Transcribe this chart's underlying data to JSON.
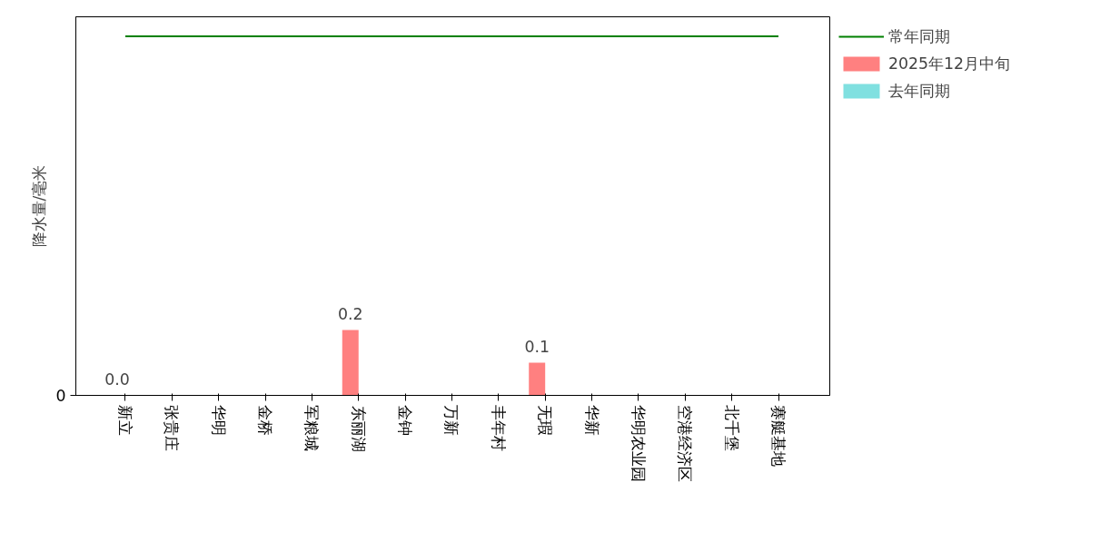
{
  "chart_data": {
    "type": "bar",
    "ylabel": "降水量/毫米",
    "categories": [
      "新立",
      "张贵庄",
      "华明",
      "金桥",
      "军粮城",
      "东丽湖",
      "金钟",
      "万新",
      "丰年村",
      "无瑕",
      "华新",
      "华明农业园",
      "空港经济区",
      "北千堡",
      "赛艇基地"
    ],
    "series": [
      {
        "type": "line",
        "name": "常年同期",
        "color": "#008000",
        "values": [
          1.1,
          1.1,
          1.1,
          1.1,
          1.1,
          1.1,
          1.1,
          1.1,
          1.1,
          1.1,
          1.1,
          1.1,
          1.1,
          1.1,
          1.1
        ]
      },
      {
        "name": "2025年12月中旬",
        "color": "#ff8080",
        "values": [
          0.0,
          0,
          0,
          0,
          0,
          0.2,
          0,
          0,
          0,
          0.1,
          0,
          0,
          0,
          0,
          0
        ],
        "value_labels": [
          "0.0",
          null,
          null,
          null,
          null,
          "0.2",
          null,
          null,
          null,
          "0.1",
          null,
          null,
          null,
          null,
          null
        ]
      },
      {
        "name": "去年同期",
        "color": "#80e0e0",
        "values": [
          0,
          0,
          0,
          0,
          0,
          0,
          0,
          0,
          0,
          0,
          0,
          0,
          0,
          0,
          0
        ]
      }
    ],
    "ylim": [
      0,
      1.16
    ],
    "annotations": [
      "0"
    ],
    "grid": false,
    "legend": "right"
  }
}
